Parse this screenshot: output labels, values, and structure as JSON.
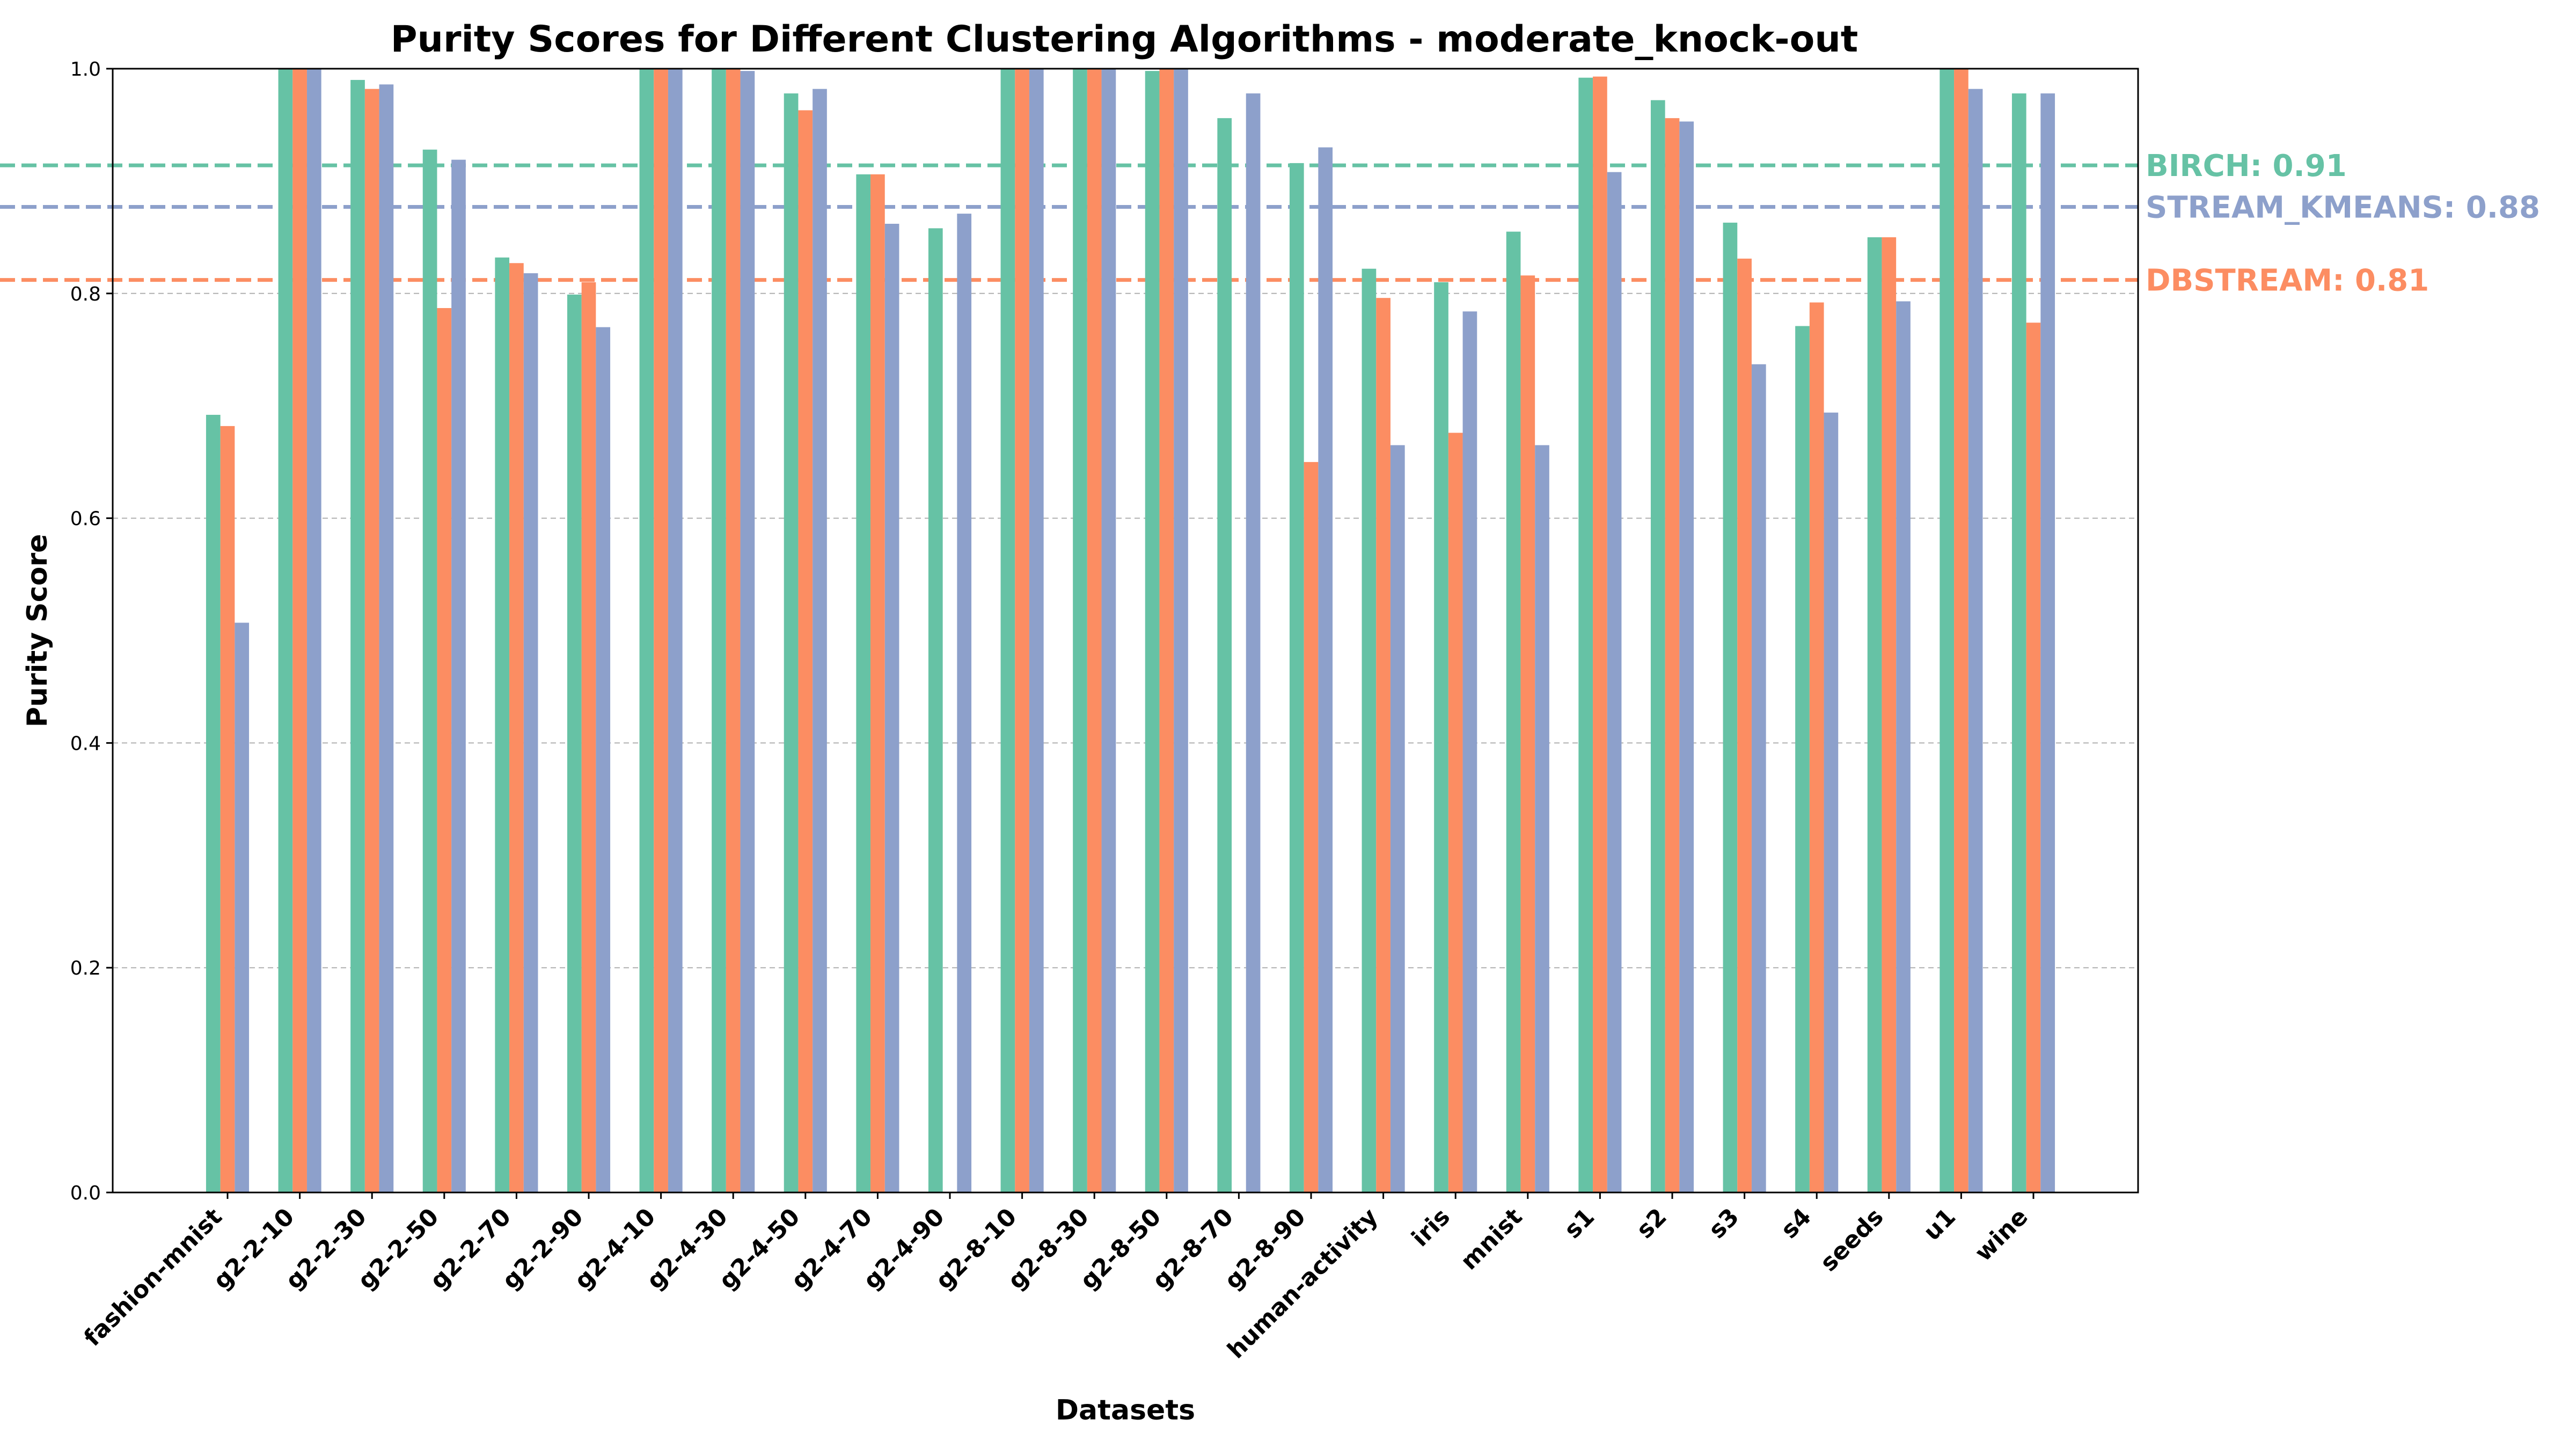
{
  "chart_data": {
    "type": "bar",
    "title": "Purity Scores for Different Clustering Algorithms - moderate_knock-out",
    "xlabel": "Datasets",
    "ylabel": "Purity Score",
    "ylim": [
      0,
      1.0
    ],
    "yticks": [
      "0.0",
      "0.2",
      "0.4",
      "0.6",
      "0.8",
      "1.0"
    ],
    "grid": "y-dashed",
    "categories": [
      "fashion-mnist",
      "g2-2-10",
      "g2-2-30",
      "g2-2-50",
      "g2-2-70",
      "g2-2-90",
      "g2-4-10",
      "g2-4-30",
      "g2-4-50",
      "g2-4-70",
      "g2-4-90",
      "g2-8-10",
      "g2-8-30",
      "g2-8-50",
      "g2-8-70",
      "g2-8-90",
      "human-activity",
      "iris",
      "mnist",
      "s1",
      "s2",
      "s3",
      "s4",
      "seeds",
      "u1",
      "wine"
    ],
    "series": [
      {
        "key": "birch",
        "color": "#66c2a5",
        "values": [
          0.692,
          1.0,
          0.99,
          0.928,
          0.832,
          0.799,
          1.0,
          1.0,
          0.978,
          0.906,
          0.858,
          1.0,
          1.0,
          0.998,
          0.956,
          0.916,
          0.822,
          0.81,
          0.855,
          0.992,
          0.972,
          0.863,
          0.771,
          0.85,
          1.0,
          0.978
        ]
      },
      {
        "key": "dbstream",
        "color": "#fc8d62",
        "values": [
          0.682,
          1.0,
          0.982,
          0.787,
          0.827,
          0.81,
          1.0,
          1.0,
          0.963,
          0.906,
          0.0,
          1.0,
          1.0,
          1.0,
          0.0,
          0.65,
          0.796,
          0.676,
          0.816,
          0.993,
          0.956,
          0.831,
          0.792,
          0.85,
          1.0,
          0.774
        ]
      },
      {
        "key": "stream_kmeans",
        "color": "#8da0cb",
        "values": [
          0.507,
          1.0,
          0.986,
          0.919,
          0.818,
          0.77,
          1.0,
          0.998,
          0.982,
          0.862,
          0.871,
          1.0,
          1.0,
          1.0,
          0.978,
          0.93,
          0.665,
          0.784,
          0.665,
          0.908,
          0.953,
          0.737,
          0.694,
          0.793,
          0.982,
          0.978
        ]
      }
    ],
    "averages": [
      {
        "label": "BIRCH: 0.91",
        "value": 0.914,
        "color": "#66c2a5"
      },
      {
        "label": "STREAM_KMEANS: 0.88",
        "value": 0.877,
        "color": "#8da0cb"
      },
      {
        "label": "DBSTREAM: 0.81",
        "value": 0.812,
        "color": "#fc8d62"
      }
    ]
  }
}
